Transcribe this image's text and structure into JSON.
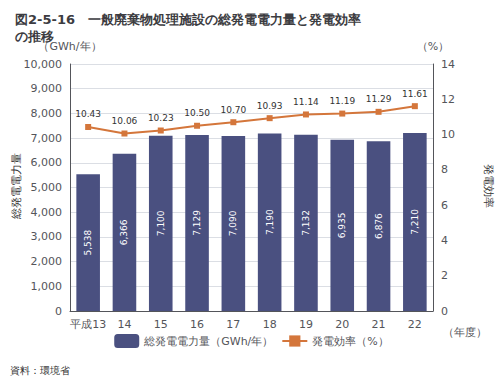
{
  "chart_data": {
    "type": "bar",
    "title": "図2-5-16　一般廃棄物処理施設の総発電電力量と発電効率\nの推移",
    "categories": [
      "平成13",
      "14",
      "15",
      "16",
      "17",
      "18",
      "19",
      "20",
      "21",
      "22"
    ],
    "series": [
      {
        "name": "総発電電力量（GWh/年）",
        "type": "bar",
        "color": "#4a5080",
        "values": [
          5538,
          6366,
          7100,
          7129,
          7090,
          7190,
          7132,
          6935,
          6876,
          7210
        ],
        "value_labels": [
          "5,538",
          "6,366",
          "7,100",
          "7,129",
          "7,090",
          "7,190",
          "7,132",
          "6,935",
          "6,876",
          "7,210"
        ]
      },
      {
        "name": "発電効率（%）",
        "type": "line",
        "axis": "y2",
        "color": "#d4763b",
        "marker": "square",
        "values": [
          10.43,
          10.06,
          10.23,
          10.5,
          10.7,
          10.93,
          11.14,
          11.19,
          11.29,
          11.61
        ],
        "value_labels": [
          "10.43",
          "10.06",
          "10.23",
          "10.50",
          "10.70",
          "10.93",
          "11.14",
          "11.19",
          "11.29",
          "11.61"
        ]
      }
    ],
    "xlabel": "（年度）",
    "ylabel": "総発電電力量",
    "ylabel_unit": "（GWh/年）",
    "y2label": "発電効率",
    "y2label_unit": "（%）",
    "annotations": [
      "資料：環境省"
    ],
    "ylim": [
      0,
      10000
    ],
    "yticks": [
      0,
      {
        "value": 1000,
        "label": "1,000"
      },
      {
        "value": 2000,
        "label": "2,000"
      },
      {
        "value": 3000,
        "label": "3,000"
      },
      {
        "value": 4000,
        "label": "4,000"
      },
      {
        "value": 5000,
        "label": "5,000"
      },
      {
        "value": 6000,
        "label": "6,000"
      },
      {
        "value": 7000,
        "label": "7,000"
      },
      {
        "value": 8000,
        "label": "8,000"
      },
      {
        "value": 9000,
        "label": "9,000"
      },
      {
        "value": 10000,
        "label": "10,000"
      }
    ],
    "y2lim": [
      0,
      14
    ],
    "y2ticks": [
      0,
      2,
      4,
      6,
      8,
      10,
      12,
      14
    ],
    "grid": true,
    "legend": "bottom",
    "data_labels": true
  }
}
